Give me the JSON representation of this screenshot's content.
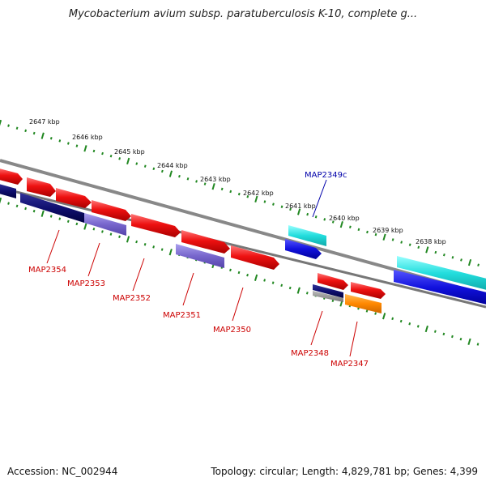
{
  "title": "Mycobacterium avium subsp. paratuberculosis K-10, complete g...",
  "footer": {
    "accession": "Accession: NC_002944",
    "summary": "Topology: circular; Length: 4,829,781 bp; Genes: 4,399"
  },
  "scale_labels": [
    "2647 kbp",
    "2646 kbp",
    "2645 kbp",
    "2644 kbp",
    "2643 kbp",
    "2642 kbp",
    "2641 kbp",
    "2640 kbp",
    "2639 kbp",
    "2638 kbp"
  ],
  "genes": [
    {
      "id": "MAP2354",
      "label": "MAP2354"
    },
    {
      "id": "MAP2353",
      "label": "MAP2353"
    },
    {
      "id": "MAP2352",
      "label": "MAP2352"
    },
    {
      "id": "MAP2351",
      "label": "MAP2351"
    },
    {
      "id": "MAP2350",
      "label": "MAP2350"
    },
    {
      "id": "MAP2349c",
      "label": "MAP2349c"
    },
    {
      "id": "MAP2348",
      "label": "MAP2348"
    },
    {
      "id": "MAP2347",
      "label": "MAP2347"
    }
  ],
  "colors": {
    "cds_forward": "#ee1111",
    "cds_reverse": "#1111dd",
    "backbone": "#888888",
    "scale_ticks": "#228822",
    "highlight": "#22dddd",
    "orange": "#ff8800",
    "purple": "#7766cc",
    "label_red": "#cc0000",
    "label_blue": "#0000aa"
  }
}
